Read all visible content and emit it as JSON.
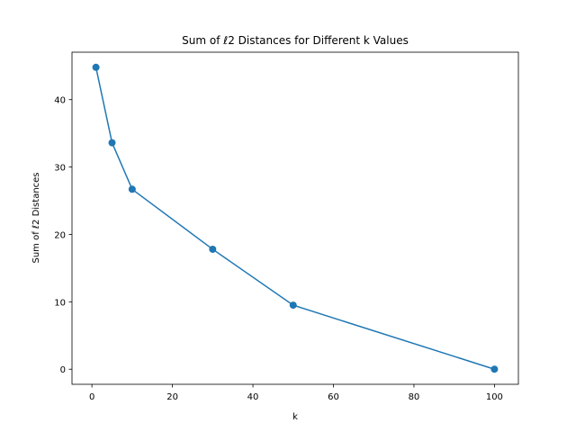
{
  "chart_data": {
    "type": "line",
    "title": "Sum of ℓ2 Distances for Different k Values",
    "xlabel": "k",
    "ylabel": "Sum of ℓ2 Distances",
    "xlim": [
      -4.95,
      105.95
    ],
    "ylim": [
      -2.24,
      47.04
    ],
    "xticks": [
      0,
      20,
      40,
      60,
      80,
      100
    ],
    "yticks": [
      0,
      10,
      20,
      30,
      40
    ],
    "grid": false,
    "markers": true,
    "series": [
      {
        "color": "#1f77b4",
        "x": [
          1,
          5,
          10,
          30,
          50,
          100
        ],
        "y": [
          44.8,
          33.6,
          26.7,
          17.8,
          9.5,
          0.0
        ]
      }
    ]
  }
}
